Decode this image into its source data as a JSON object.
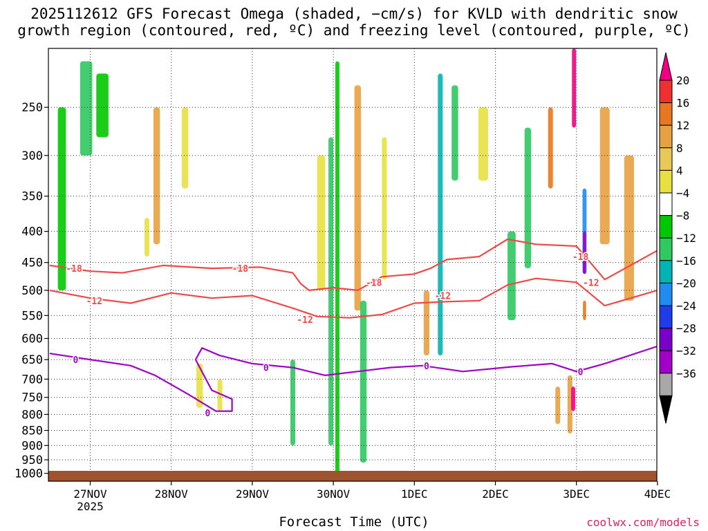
{
  "title_line1": "2025112612 GFS Forecast Omega (shaded, −cm/s) for KVLD with dendritic snow",
  "title_line2": "growth region (contoured, red, ºC) and freezing level (contoured, purple, ºC)",
  "credit": "coolwx.com/models",
  "chart_data": {
    "type": "heatmap",
    "title": "2025112612 GFS Forecast Omega (shaded, −cm/s) for KVLD with dendritic snow growth region (contoured, red, ºC) and freezing level (contoured, purple, ºC)",
    "xlabel": "Forecast Time (UTC)",
    "ylabel": "",
    "x_ticks": [
      "27NOV",
      "28NOV",
      "29NOV",
      "30NOV",
      "1DEC",
      "2DEC",
      "3DEC",
      "4DEC"
    ],
    "x_year_label": "2025",
    "x_range": [
      -0.5,
      7.0
    ],
    "y_log_pressure": true,
    "y_range": [
      1025,
      200
    ],
    "y_ticks": [
      250,
      300,
      350,
      400,
      450,
      500,
      550,
      600,
      650,
      700,
      750,
      800,
      850,
      900,
      950,
      1000
    ],
    "grid": true,
    "colorbar": {
      "labels": [
        "20",
        "16",
        "12",
        "8",
        "4",
        "−4",
        "−8",
        "−12",
        "−16",
        "−20",
        "−24",
        "−28",
        "−32",
        "−36"
      ],
      "colors": [
        "#f00080",
        "#f03030",
        "#e87820",
        "#e8a040",
        "#e8c858",
        "#e8e040",
        "#ffffff",
        "#00c800",
        "#30c860",
        "#00b4b4",
        "#1e8cf0",
        "#1e3ce8",
        "#7800c8",
        "#a000c8",
        "#a8a8a8",
        "#000000"
      ]
    },
    "omega_cells": [
      {
        "t": -0.35,
        "p0": 250,
        "p1": 500,
        "w": 0.1,
        "v": -6
      },
      {
        "t": -0.05,
        "p0": 210,
        "p1": 300,
        "w": 0.15,
        "v": -8
      },
      {
        "t": 0.15,
        "p0": 220,
        "p1": 280,
        "w": 0.15,
        "v": -6
      },
      {
        "t": 0.7,
        "p0": 380,
        "p1": 440,
        "w": 0.06,
        "v": 6
      },
      {
        "t": 0.82,
        "p0": 250,
        "p1": 420,
        "w": 0.08,
        "v": 10
      },
      {
        "t": 1.17,
        "p0": 250,
        "p1": 340,
        "w": 0.08,
        "v": 6
      },
      {
        "t": 1.35,
        "p0": 660,
        "p1": 780,
        "w": 0.08,
        "v": 6
      },
      {
        "t": 1.6,
        "p0": 700,
        "p1": 790,
        "w": 0.06,
        "v": 6
      },
      {
        "t": 2.5,
        "p0": 650,
        "p1": 900,
        "w": 0.06,
        "v": -8
      },
      {
        "t": 2.85,
        "p0": 300,
        "p1": 500,
        "w": 0.1,
        "v": 6
      },
      {
        "t": 2.97,
        "p0": 280,
        "p1": 900,
        "w": 0.06,
        "v": -8
      },
      {
        "t": 3.05,
        "p0": 210,
        "p1": 1000,
        "w": 0.05,
        "v": -6
      },
      {
        "t": 3.3,
        "p0": 230,
        "p1": 540,
        "w": 0.08,
        "v": 10
      },
      {
        "t": 3.37,
        "p0": 520,
        "p1": 960,
        "w": 0.08,
        "v": -8
      },
      {
        "t": 3.63,
        "p0": 280,
        "p1": 480,
        "w": 0.06,
        "v": 6
      },
      {
        "t": 4.15,
        "p0": 500,
        "p1": 640,
        "w": 0.07,
        "v": 10
      },
      {
        "t": 4.32,
        "p0": 220,
        "p1": 640,
        "w": 0.06,
        "v": -14
      },
      {
        "t": 4.5,
        "p0": 230,
        "p1": 330,
        "w": 0.08,
        "v": -8
      },
      {
        "t": 4.85,
        "p0": 250,
        "p1": 330,
        "w": 0.12,
        "v": 6
      },
      {
        "t": 5.2,
        "p0": 400,
        "p1": 560,
        "w": 0.1,
        "v": -8
      },
      {
        "t": 5.4,
        "p0": 270,
        "p1": 460,
        "w": 0.08,
        "v": -10
      },
      {
        "t": 5.68,
        "p0": 250,
        "p1": 340,
        "w": 0.06,
        "v": 12
      },
      {
        "t": 5.77,
        "p0": 720,
        "p1": 830,
        "w": 0.06,
        "v": 8
      },
      {
        "t": 5.92,
        "p0": 690,
        "p1": 860,
        "w": 0.06,
        "v": 8
      },
      {
        "t": 5.96,
        "p0": 720,
        "p1": 790,
        "w": 0.05,
        "v": 20
      },
      {
        "t": 5.97,
        "p0": 200,
        "p1": 270,
        "w": 0.05,
        "v": 20
      },
      {
        "t": 6.1,
        "p0": 340,
        "p1": 470,
        "w": 0.05,
        "v": -16
      },
      {
        "t": 6.1,
        "p0": 400,
        "p1": 470,
        "w": 0.04,
        "v": -28
      },
      {
        "t": 6.1,
        "p0": 520,
        "p1": 560,
        "w": 0.04,
        "v": 14
      },
      {
        "t": 6.35,
        "p0": 250,
        "p1": 420,
        "w": 0.12,
        "v": 10
      },
      {
        "t": 6.65,
        "p0": 300,
        "p1": 520,
        "w": 0.12,
        "v": 8
      }
    ],
    "contours": [
      {
        "name": "-18",
        "color": "#f04848",
        "labels": [
          {
            "t": -0.2,
            "p": 460
          },
          {
            "t": 1.85,
            "p": 460
          },
          {
            "t": 3.5,
            "p": 485
          },
          {
            "t": 6.05,
            "p": 440
          }
        ],
        "points": [
          [
            -0.5,
            455
          ],
          [
            0.0,
            465
          ],
          [
            0.4,
            468
          ],
          [
            0.9,
            455
          ],
          [
            1.5,
            460
          ],
          [
            2.1,
            458
          ],
          [
            2.5,
            468
          ],
          [
            2.6,
            488
          ],
          [
            2.7,
            500
          ],
          [
            3.0,
            495
          ],
          [
            3.3,
            500
          ],
          [
            3.6,
            475
          ],
          [
            4.0,
            470
          ],
          [
            4.2,
            460
          ],
          [
            4.4,
            445
          ],
          [
            4.8,
            440
          ],
          [
            5.15,
            412
          ],
          [
            5.5,
            420
          ],
          [
            6.0,
            423
          ],
          [
            6.35,
            480
          ],
          [
            7.0,
            430
          ]
        ]
      },
      {
        "name": "-12",
        "color": "#f04848",
        "labels": [
          {
            "t": 0.05,
            "p": 520
          },
          {
            "t": 2.65,
            "p": 558
          },
          {
            "t": 4.35,
            "p": 510
          },
          {
            "t": 6.18,
            "p": 485
          }
        ],
        "points": [
          [
            -0.5,
            500
          ],
          [
            0.0,
            515
          ],
          [
            0.5,
            525
          ],
          [
            1.0,
            505
          ],
          [
            1.5,
            515
          ],
          [
            2.0,
            510
          ],
          [
            2.5,
            535
          ],
          [
            2.8,
            552
          ],
          [
            3.2,
            555
          ],
          [
            3.6,
            548
          ],
          [
            4.0,
            525
          ],
          [
            4.4,
            522
          ],
          [
            4.8,
            520
          ],
          [
            5.15,
            490
          ],
          [
            5.5,
            478
          ],
          [
            6.0,
            485
          ],
          [
            6.35,
            530
          ],
          [
            7.0,
            500
          ]
        ]
      },
      {
        "name": "0",
        "color": "#a000c8",
        "labels": [
          {
            "t": -0.18,
            "p": 650
          },
          {
            "t": 1.45,
            "p": 795
          },
          {
            "t": 2.17,
            "p": 670
          },
          {
            "t": 4.15,
            "p": 665
          },
          {
            "t": 6.05,
            "p": 680
          }
        ],
        "points": [
          [
            -0.5,
            635
          ],
          [
            0.0,
            650
          ],
          [
            0.5,
            665
          ],
          [
            0.8,
            690
          ],
          [
            1.2,
            740
          ],
          [
            1.55,
            790
          ],
          [
            1.75,
            790
          ],
          [
            1.75,
            755
          ],
          [
            1.5,
            730
          ],
          [
            1.3,
            650
          ],
          [
            1.38,
            622
          ],
          [
            1.6,
            640
          ],
          [
            2.0,
            660
          ],
          [
            2.5,
            670
          ],
          [
            2.9,
            690
          ],
          [
            3.3,
            680
          ],
          [
            3.7,
            670
          ],
          [
            4.1,
            665
          ],
          [
            4.6,
            680
          ],
          [
            5.2,
            668
          ],
          [
            5.7,
            660
          ],
          [
            6.0,
            680
          ],
          [
            6.35,
            660
          ],
          [
            7.0,
            618
          ]
        ]
      }
    ]
  }
}
